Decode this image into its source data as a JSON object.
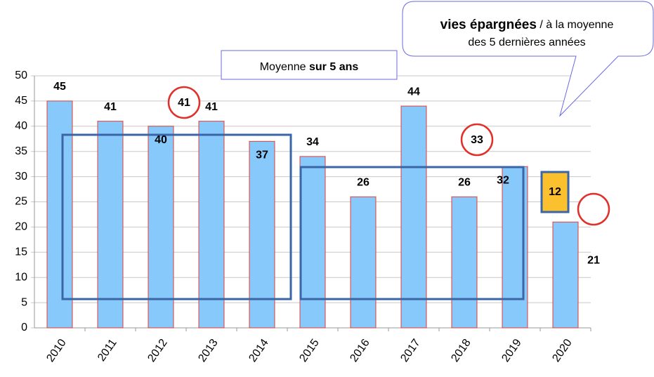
{
  "chart_data": {
    "type": "bar",
    "categories": [
      "2010",
      "2011",
      "2012",
      "2013",
      "2014",
      "2015",
      "2016",
      "2017",
      "2018",
      "2019",
      "2020"
    ],
    "values": [
      45,
      41,
      40,
      41,
      37,
      34,
      26,
      44,
      26,
      32,
      21
    ],
    "color": "#88c9fb",
    "edge_color": "#e0403a",
    "ylim": [
      0,
      50
    ],
    "yticks": [
      0,
      5,
      10,
      15,
      20,
      25,
      30,
      35,
      40,
      45,
      50
    ],
    "grid": true,
    "annotations": {
      "average_box": {
        "text": "Moyenne",
        "bold_text": "sur 5 ans"
      },
      "callout": {
        "bold_text": "vies épargnées",
        "text": " / à la moyenne",
        "line2": "des 5 dernières années"
      },
      "average_2010_2014": "41",
      "average_2015_2019": "33",
      "lives_saved": "12"
    }
  }
}
